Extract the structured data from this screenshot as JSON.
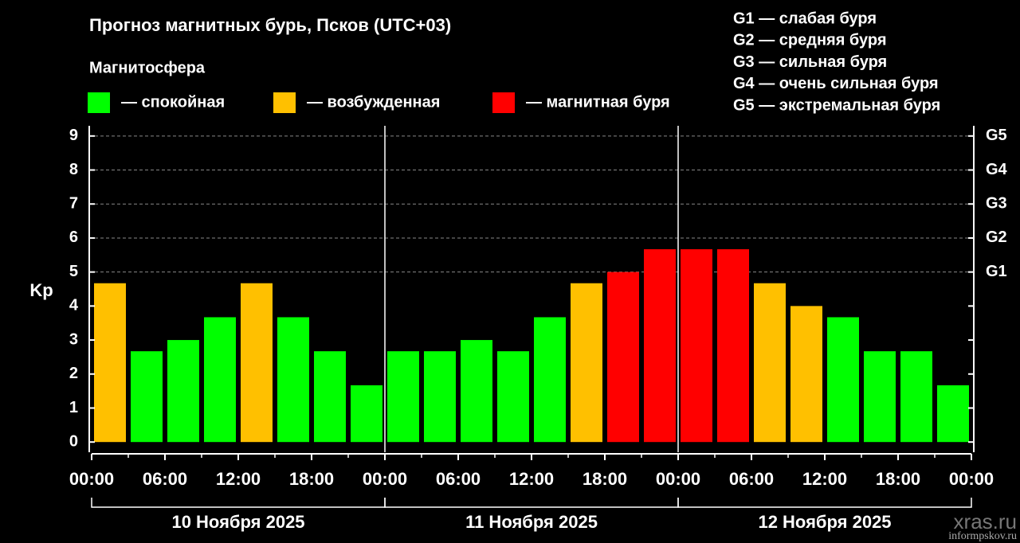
{
  "chart_data": {
    "type": "bar",
    "title": "Прогноз магнитных бурь, Псков (UTC+03)",
    "legend_title": "Магнитосфера",
    "legend": [
      {
        "label": "— спокойная",
        "color": "#00ff00"
      },
      {
        "label": "— возбужденная",
        "color": "#ffc000"
      },
      {
        "label": "— магнитная буря",
        "color": "#ff0000"
      }
    ],
    "g_legend": [
      "G1 — слабая буря",
      "G2 — средняя буря",
      "G3 — сильная буря",
      "G4 — очень сильная буря",
      "G5 — экстремальная буря"
    ],
    "y_label": "Kp",
    "x": [
      0,
      3,
      6,
      9,
      12,
      15,
      18,
      21,
      24,
      27,
      30,
      33,
      36,
      39,
      42,
      45,
      48,
      51,
      54,
      57,
      60,
      63,
      66,
      69
    ],
    "bar_width": 3,
    "values": [
      4.67,
      2.67,
      3.0,
      3.67,
      4.67,
      3.67,
      2.67,
      1.67,
      2.67,
      2.67,
      3.0,
      2.67,
      3.67,
      4.67,
      5.0,
      5.67,
      5.67,
      5.67,
      4.67,
      4.0,
      3.67,
      2.67,
      2.67,
      1.67
    ],
    "colors": [
      "#ffc000",
      "#00ff00",
      "#00ff00",
      "#00ff00",
      "#ffc000",
      "#00ff00",
      "#00ff00",
      "#00ff00",
      "#00ff00",
      "#00ff00",
      "#00ff00",
      "#00ff00",
      "#00ff00",
      "#ffc000",
      "#ff0000",
      "#ff0000",
      "#ff0000",
      "#ff0000",
      "#ffc000",
      "#ffc000",
      "#00ff00",
      "#00ff00",
      "#00ff00",
      "#00ff00"
    ],
    "xlim": [
      0,
      72
    ],
    "xticks": [
      {
        "value": 0,
        "label": "00:00"
      },
      {
        "value": 6,
        "label": "06:00"
      },
      {
        "value": 12,
        "label": "12:00"
      },
      {
        "value": 18,
        "label": "18:00"
      },
      {
        "value": 24,
        "label": "00:00"
      },
      {
        "value": 30,
        "label": "06:00"
      },
      {
        "value": 36,
        "label": "12:00"
      },
      {
        "value": 42,
        "label": "18:00"
      },
      {
        "value": 48,
        "label": "00:00"
      },
      {
        "value": 54,
        "label": "06:00"
      },
      {
        "value": 60,
        "label": "12:00"
      },
      {
        "value": 66,
        "label": "18:00"
      },
      {
        "value": 72,
        "label": "00:00"
      }
    ],
    "days": [
      {
        "label": "10 Ноября 2025",
        "start": 0,
        "end": 24
      },
      {
        "label": "11 Ноября 2025",
        "start": 24,
        "end": 48
      },
      {
        "label": "12 Ноября 2025",
        "start": 48,
        "end": 72
      }
    ],
    "ylim": [
      -0.3,
      9.3
    ],
    "yticks": [
      0,
      1,
      2,
      3,
      4,
      5,
      6,
      7,
      8,
      9
    ],
    "g_ticks": [
      {
        "value": 5,
        "label": "G1"
      },
      {
        "value": 6,
        "label": "G2"
      },
      {
        "value": 7,
        "label": "G3"
      },
      {
        "value": 8,
        "label": "G4"
      },
      {
        "value": 9,
        "label": "G5"
      }
    ],
    "grid": true,
    "watermarks": [
      "xras.ru",
      "informpskov.ru"
    ]
  }
}
